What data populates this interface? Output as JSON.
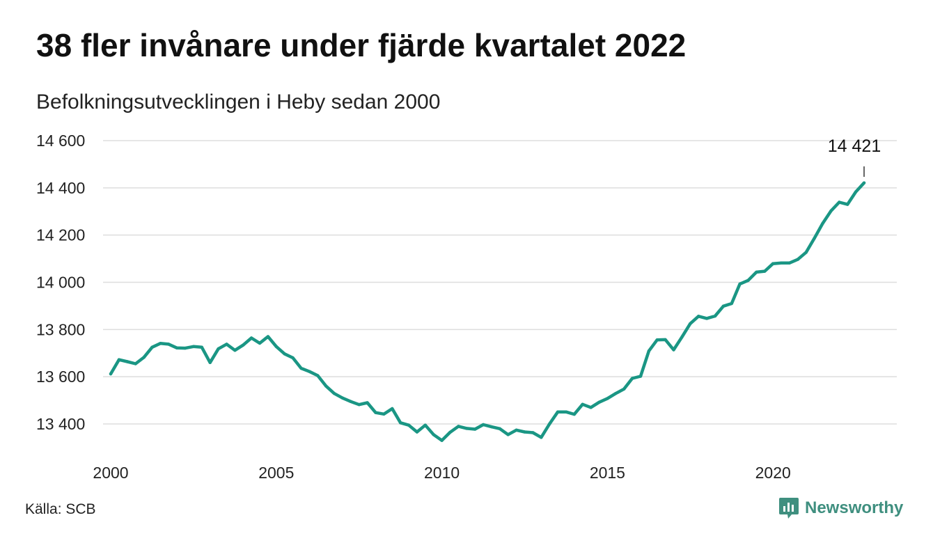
{
  "title": "38 fler invånare under fjärde kvartalet 2022",
  "subtitle": "Befolkningsutvecklingen i Heby sedan 2000",
  "source": "Källa: SCB",
  "brand": {
    "name": "Newsworthy",
    "icon": "newsworthy-logo-icon",
    "color": "#3f8f7f"
  },
  "colors": {
    "line": "#1a9684",
    "grid": "#dddddd",
    "text": "#111111"
  },
  "chart_data": {
    "type": "line",
    "title": "38 fler invånare under fjärde kvartalet 2022",
    "subtitle": "Befolkningsutvecklingen i Heby sedan 2000",
    "xlabel": "",
    "ylabel": "",
    "xlim": [
      2000,
      2023.5
    ],
    "ylim": [
      13300,
      14650
    ],
    "x_ticks": [
      2000,
      2005,
      2010,
      2015,
      2020
    ],
    "x_tick_labels": [
      "2000",
      "2005",
      "2010",
      "2015",
      "2020"
    ],
    "y_ticks": [
      13400,
      13600,
      13800,
      14000,
      14200,
      14400,
      14600
    ],
    "y_tick_labels": [
      "13 400",
      "13 600",
      "13 800",
      "14 000",
      "14 200",
      "14 400",
      "14 600"
    ],
    "grid": "horizontal",
    "end_label": "14 421",
    "series": [
      {
        "values": [
          [
            2000.0,
            13612
          ],
          [
            2000.25,
            13672
          ],
          [
            2000.5,
            13664
          ],
          [
            2000.75,
            13655
          ],
          [
            2001.0,
            13682
          ],
          [
            2001.25,
            13725
          ],
          [
            2001.5,
            13741
          ],
          [
            2001.75,
            13738
          ],
          [
            2002.0,
            13722
          ],
          [
            2002.25,
            13721
          ],
          [
            2002.5,
            13728
          ],
          [
            2002.75,
            13725
          ],
          [
            2003.0,
            13660
          ],
          [
            2003.25,
            13718
          ],
          [
            2003.5,
            13738
          ],
          [
            2003.75,
            13712
          ],
          [
            2004.0,
            13734
          ],
          [
            2004.25,
            13764
          ],
          [
            2004.5,
            13742
          ],
          [
            2004.75,
            13770
          ],
          [
            2005.0,
            13728
          ],
          [
            2005.25,
            13697
          ],
          [
            2005.5,
            13680
          ],
          [
            2005.75,
            13636
          ],
          [
            2006.0,
            13622
          ],
          [
            2006.25,
            13605
          ],
          [
            2006.5,
            13561
          ],
          [
            2006.75,
            13529
          ],
          [
            2007.0,
            13510
          ],
          [
            2007.25,
            13495
          ],
          [
            2007.5,
            13482
          ],
          [
            2007.75,
            13490
          ],
          [
            2008.0,
            13448
          ],
          [
            2008.25,
            13442
          ],
          [
            2008.5,
            13465
          ],
          [
            2008.75,
            13405
          ],
          [
            2009.0,
            13395
          ],
          [
            2009.25,
            13366
          ],
          [
            2009.5,
            13395
          ],
          [
            2009.75,
            13355
          ],
          [
            2010.0,
            13330
          ],
          [
            2010.25,
            13365
          ],
          [
            2010.5,
            13390
          ],
          [
            2010.75,
            13381
          ],
          [
            2011.0,
            13378
          ],
          [
            2011.25,
            13397
          ],
          [
            2011.5,
            13388
          ],
          [
            2011.75,
            13380
          ],
          [
            2012.0,
            13355
          ],
          [
            2012.25,
            13374
          ],
          [
            2012.5,
            13366
          ],
          [
            2012.75,
            13363
          ],
          [
            2013.0,
            13343
          ],
          [
            2013.25,
            13400
          ],
          [
            2013.5,
            13451
          ],
          [
            2013.75,
            13451
          ],
          [
            2014.0,
            13441
          ],
          [
            2014.25,
            13483
          ],
          [
            2014.5,
            13470
          ],
          [
            2014.75,
            13492
          ],
          [
            2015.0,
            13508
          ],
          [
            2015.25,
            13529
          ],
          [
            2015.5,
            13548
          ],
          [
            2015.75,
            13593
          ],
          [
            2016.0,
            13602
          ],
          [
            2016.25,
            13709
          ],
          [
            2016.5,
            13756
          ],
          [
            2016.75,
            13757
          ],
          [
            2017.0,
            13714
          ],
          [
            2017.25,
            13768
          ],
          [
            2017.5,
            13825
          ],
          [
            2017.75,
            13856
          ],
          [
            2018.0,
            13847
          ],
          [
            2018.25,
            13857
          ],
          [
            2018.5,
            13899
          ],
          [
            2018.75,
            13910
          ],
          [
            2019.0,
            13993
          ],
          [
            2019.25,
            14008
          ],
          [
            2019.5,
            14043
          ],
          [
            2019.75,
            14047
          ],
          [
            2020.0,
            14079
          ],
          [
            2020.25,
            14082
          ],
          [
            2020.5,
            14082
          ],
          [
            2020.75,
            14097
          ],
          [
            2021.0,
            14127
          ],
          [
            2021.25,
            14187
          ],
          [
            2021.5,
            14249
          ],
          [
            2021.75,
            14302
          ],
          [
            2022.0,
            14339
          ],
          [
            2022.25,
            14330
          ],
          [
            2022.5,
            14383
          ],
          [
            2022.75,
            14421
          ]
        ]
      }
    ]
  }
}
